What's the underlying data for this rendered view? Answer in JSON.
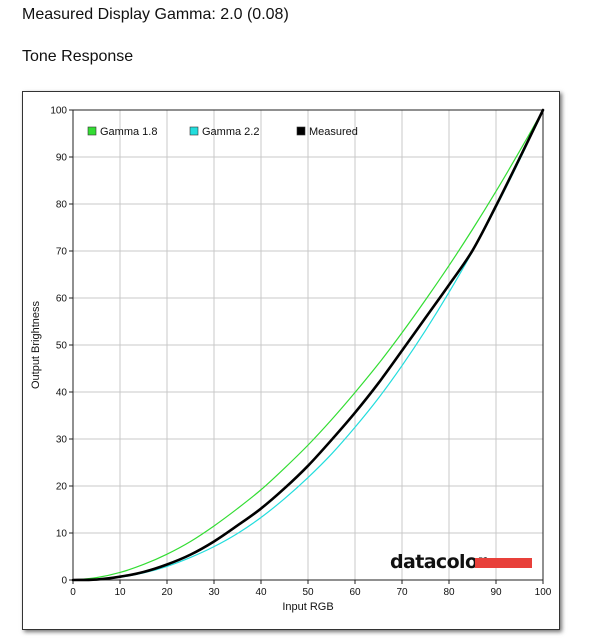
{
  "page": {
    "heading": "Measured Display Gamma: 2.0 (0.08)",
    "subheading": "Tone Response"
  },
  "logo": {
    "text": "datacolor",
    "bar_color": "#e8403a"
  },
  "chart_data": {
    "type": "line",
    "title": "",
    "xlabel": "Input RGB",
    "ylabel": "Output Brightness",
    "xlim": [
      0,
      100
    ],
    "ylim": [
      0,
      100
    ],
    "xticks": [
      0,
      10,
      20,
      30,
      40,
      50,
      60,
      70,
      80,
      90,
      100
    ],
    "yticks": [
      0,
      10,
      20,
      30,
      40,
      50,
      60,
      70,
      80,
      90,
      100
    ],
    "grid": true,
    "legend_position": "top-left",
    "x": [
      0,
      5,
      10,
      15,
      20,
      25,
      30,
      35,
      40,
      45,
      50,
      55,
      60,
      65,
      70,
      75,
      80,
      85,
      90,
      95,
      100
    ],
    "series": [
      {
        "name": "Gamma 1.8",
        "color": "#33dd33",
        "values": [
          0,
          0.5,
          1.6,
          3.3,
          5.5,
          8.2,
          11.5,
          15.2,
          19.2,
          23.8,
          28.7,
          34.1,
          39.9,
          46.0,
          52.6,
          59.6,
          66.9,
          74.6,
          82.7,
          91.2,
          100
        ]
      },
      {
        "name": "Gamma 2.2",
        "color": "#22dddd",
        "values": [
          0,
          0.1,
          0.6,
          1.5,
          2.9,
          4.8,
          7.1,
          9.9,
          13.3,
          17.3,
          21.8,
          26.8,
          32.5,
          38.7,
          45.6,
          53.1,
          61.2,
          69.9,
          79.3,
          89.3,
          100
        ]
      },
      {
        "name": "Measured",
        "color": "#000000",
        "values": [
          0,
          0.1,
          0.7,
          1.7,
          3.3,
          5.4,
          8.2,
          11.6,
          15.2,
          19.5,
          24.3,
          29.8,
          35.6,
          41.9,
          48.8,
          55.8,
          62.8,
          70.1,
          79.6,
          89.7,
          100
        ]
      }
    ]
  }
}
